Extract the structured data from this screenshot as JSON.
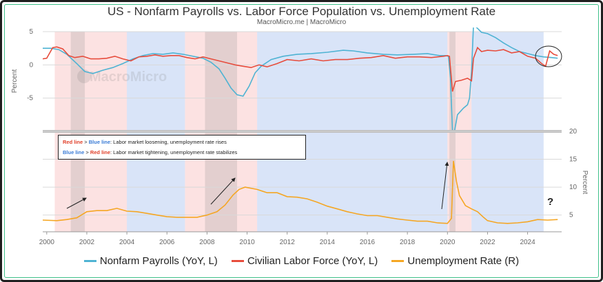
{
  "header": {
    "title": "US - Nonfarm Payrolls vs. Labor Force Population vs. Unemployment Rate",
    "subtitle": "MacroMicro.me | MacroMicro",
    "watermark": "MacroMicro"
  },
  "annotations": {
    "line1_red": "Red line",
    "line1_op": " > ",
    "line1_blue": "Blue line",
    "line1_text": ": Labor market loosening, unemployment rate rises",
    "line2_blue": "Blue line",
    "line2_op": " > ",
    "line2_red": "Red line",
    "line2_text": ": Labor market tightening, unemployment rate stabilizes",
    "question": "?"
  },
  "legend": {
    "payrolls": "Nonfarm Payrolls (YoY, L)",
    "laborforce": "Civilian Labor Force (YoY, L)",
    "unemployment": "Unemployment Rate (R)"
  },
  "colors": {
    "payrolls": "#4eb3d3",
    "laborforce": "#e74c3c",
    "unemployment": "#f5a623",
    "red_shade": "rgba(248,190,190,0.45)",
    "blue_shade": "rgba(170,195,240,0.45)",
    "grey_shade": "rgba(150,150,150,0.25)"
  },
  "chart_data": [
    {
      "type": "line",
      "title": "US - Nonfarm Payrolls vs. Labor Force Population vs. Unemployment Rate",
      "subtitle": "MacroMicro.me | MacroMicro",
      "ylabel": "Percent",
      "ylim": [
        -10,
        5
      ],
      "yticks": [
        5,
        0,
        -5
      ],
      "x_range": [
        1999.8,
        2025.7
      ],
      "grid": true,
      "series": [
        {
          "name": "Nonfarm Payrolls (YoY, L)",
          "points": [
            [
              1999.8,
              2.5
            ],
            [
              2000.2,
              2.5
            ],
            [
              2000.6,
              2.3
            ],
            [
              2001.0,
              1.6
            ],
            [
              2001.5,
              0.2
            ],
            [
              2001.9,
              -1.0
            ],
            [
              2002.3,
              -1.3
            ],
            [
              2002.8,
              -0.8
            ],
            [
              2003.3,
              -0.4
            ],
            [
              2003.8,
              0.2
            ],
            [
              2004.3,
              0.9
            ],
            [
              2004.8,
              1.4
            ],
            [
              2005.3,
              1.7
            ],
            [
              2005.8,
              1.6
            ],
            [
              2006.3,
              1.8
            ],
            [
              2006.8,
              1.6
            ],
            [
              2007.3,
              1.3
            ],
            [
              2007.8,
              1.0
            ],
            [
              2008.2,
              0.4
            ],
            [
              2008.6,
              -0.6
            ],
            [
              2008.9,
              -2.0
            ],
            [
              2009.2,
              -3.5
            ],
            [
              2009.5,
              -4.5
            ],
            [
              2009.8,
              -4.7
            ],
            [
              2010.1,
              -3.2
            ],
            [
              2010.4,
              -1.2
            ],
            [
              2010.7,
              -0.2
            ],
            [
              2011.2,
              0.8
            ],
            [
              2011.8,
              1.3
            ],
            [
              2012.5,
              1.6
            ],
            [
              2013.2,
              1.7
            ],
            [
              2014.0,
              1.9
            ],
            [
              2014.8,
              2.2
            ],
            [
              2015.3,
              2.1
            ],
            [
              2016.0,
              1.8
            ],
            [
              2016.8,
              1.6
            ],
            [
              2017.5,
              1.5
            ],
            [
              2018.3,
              1.6
            ],
            [
              2019.0,
              1.7
            ],
            [
              2019.6,
              1.4
            ],
            [
              2019.9,
              1.4
            ],
            [
              2020.05,
              1.3
            ],
            [
              2020.15,
              -2.0
            ],
            [
              2020.25,
              -13.0
            ],
            [
              2020.35,
              -10.0
            ],
            [
              2020.5,
              -7.5
            ],
            [
              2020.8,
              -6.5
            ],
            [
              2021.0,
              -6.0
            ],
            [
              2021.1,
              -5.0
            ],
            [
              2021.2,
              -1.0
            ],
            [
              2021.3,
              6.0
            ],
            [
              2021.5,
              5.5
            ],
            [
              2021.7,
              4.9
            ],
            [
              2022.0,
              4.7
            ],
            [
              2022.4,
              4.1
            ],
            [
              2022.8,
              3.3
            ],
            [
              2023.2,
              2.6
            ],
            [
              2023.6,
              2.0
            ],
            [
              2024.0,
              1.7
            ],
            [
              2024.4,
              1.4
            ],
            [
              2024.8,
              1.2
            ],
            [
              2025.2,
              1.1
            ],
            [
              2025.5,
              1.0
            ]
          ]
        },
        {
          "name": "Civilian Labor Force (YoY, L)",
          "points": [
            [
              1999.8,
              0.9
            ],
            [
              2000.0,
              1.0
            ],
            [
              2000.3,
              2.6
            ],
            [
              2000.5,
              2.7
            ],
            [
              2000.8,
              2.4
            ],
            [
              2001.1,
              1.4
            ],
            [
              2001.4,
              1.1
            ],
            [
              2001.8,
              1.3
            ],
            [
              2002.2,
              0.9
            ],
            [
              2002.6,
              0.9
            ],
            [
              2003.0,
              1.0
            ],
            [
              2003.4,
              1.3
            ],
            [
              2003.8,
              0.9
            ],
            [
              2004.2,
              0.6
            ],
            [
              2004.6,
              1.2
            ],
            [
              2005.0,
              1.3
            ],
            [
              2005.4,
              1.5
            ],
            [
              2005.8,
              1.3
            ],
            [
              2006.2,
              1.4
            ],
            [
              2006.6,
              1.4
            ],
            [
              2007.0,
              1.1
            ],
            [
              2007.4,
              0.9
            ],
            [
              2007.8,
              1.2
            ],
            [
              2008.2,
              0.9
            ],
            [
              2008.6,
              0.6
            ],
            [
              2009.0,
              0.3
            ],
            [
              2009.4,
              0.0
            ],
            [
              2009.8,
              -0.2
            ],
            [
              2010.2,
              -0.4
            ],
            [
              2010.6,
              0.0
            ],
            [
              2011.0,
              -0.3
            ],
            [
              2011.5,
              0.2
            ],
            [
              2012.0,
              0.8
            ],
            [
              2012.6,
              0.6
            ],
            [
              2013.2,
              0.9
            ],
            [
              2013.8,
              0.6
            ],
            [
              2014.4,
              0.8
            ],
            [
              2015.0,
              0.8
            ],
            [
              2015.6,
              1.0
            ],
            [
              2016.2,
              1.1
            ],
            [
              2016.8,
              1.4
            ],
            [
              2017.4,
              1.0
            ],
            [
              2018.0,
              1.2
            ],
            [
              2018.6,
              1.2
            ],
            [
              2019.2,
              1.1
            ],
            [
              2019.8,
              1.3
            ],
            [
              2020.0,
              1.4
            ],
            [
              2020.1,
              1.3
            ],
            [
              2020.25,
              -4.0
            ],
            [
              2020.4,
              -2.5
            ],
            [
              2020.7,
              -2.3
            ],
            [
              2021.0,
              -2.0
            ],
            [
              2021.2,
              -2.4
            ],
            [
              2021.3,
              1.0
            ],
            [
              2021.5,
              2.6
            ],
            [
              2021.7,
              2.0
            ],
            [
              2022.0,
              2.2
            ],
            [
              2022.4,
              2.1
            ],
            [
              2022.8,
              2.3
            ],
            [
              2023.2,
              1.8
            ],
            [
              2023.6,
              2.0
            ],
            [
              2024.0,
              1.3
            ],
            [
              2024.4,
              1.0
            ],
            [
              2024.7,
              0.2
            ],
            [
              2024.9,
              -0.2
            ],
            [
              2025.1,
              2.1
            ],
            [
              2025.3,
              1.6
            ],
            [
              2025.5,
              1.4
            ]
          ]
        }
      ]
    },
    {
      "type": "line",
      "ylabel": "Percent",
      "ylim": [
        2,
        20
      ],
      "yticks": [
        20,
        15,
        10,
        5
      ],
      "xticks": [
        "2000",
        "2002",
        "2004",
        "2006",
        "2008",
        "2010",
        "2012",
        "2014",
        "2016",
        "2018",
        "2020",
        "2022",
        "2024"
      ],
      "x_range": [
        1999.8,
        2025.7
      ],
      "grid": true,
      "series": [
        {
          "name": "Unemployment Rate (R)",
          "points": [
            [
              1999.8,
              4.1
            ],
            [
              2000.5,
              4.0
            ],
            [
              2001.0,
              4.2
            ],
            [
              2001.5,
              4.5
            ],
            [
              2002.0,
              5.6
            ],
            [
              2002.5,
              5.8
            ],
            [
              2003.0,
              5.8
            ],
            [
              2003.5,
              6.2
            ],
            [
              2004.0,
              5.7
            ],
            [
              2004.5,
              5.6
            ],
            [
              2005.0,
              5.3
            ],
            [
              2005.5,
              5.0
            ],
            [
              2006.0,
              4.7
            ],
            [
              2006.5,
              4.6
            ],
            [
              2007.0,
              4.6
            ],
            [
              2007.5,
              4.6
            ],
            [
              2008.0,
              5.0
            ],
            [
              2008.5,
              5.6
            ],
            [
              2008.9,
              6.8
            ],
            [
              2009.3,
              8.6
            ],
            [
              2009.6,
              9.6
            ],
            [
              2009.9,
              10.0
            ],
            [
              2010.5,
              9.6
            ],
            [
              2011.0,
              9.0
            ],
            [
              2011.5,
              9.0
            ],
            [
              2012.0,
              8.3
            ],
            [
              2012.5,
              8.2
            ],
            [
              2013.0,
              7.9
            ],
            [
              2013.5,
              7.3
            ],
            [
              2014.0,
              6.6
            ],
            [
              2014.5,
              6.1
            ],
            [
              2015.0,
              5.6
            ],
            [
              2015.5,
              5.2
            ],
            [
              2016.0,
              4.9
            ],
            [
              2016.5,
              4.9
            ],
            [
              2017.0,
              4.6
            ],
            [
              2017.5,
              4.3
            ],
            [
              2018.0,
              4.1
            ],
            [
              2018.5,
              3.9
            ],
            [
              2019.0,
              3.9
            ],
            [
              2019.5,
              3.6
            ],
            [
              2020.0,
              3.5
            ],
            [
              2020.2,
              4.4
            ],
            [
              2020.3,
              14.7
            ],
            [
              2020.45,
              11.0
            ],
            [
              2020.6,
              8.5
            ],
            [
              2020.9,
              6.7
            ],
            [
              2021.2,
              6.1
            ],
            [
              2021.5,
              5.6
            ],
            [
              2021.8,
              4.6
            ],
            [
              2022.0,
              4.0
            ],
            [
              2022.5,
              3.6
            ],
            [
              2023.0,
              3.5
            ],
            [
              2023.5,
              3.6
            ],
            [
              2024.0,
              3.8
            ],
            [
              2024.5,
              4.2
            ],
            [
              2025.0,
              4.1
            ],
            [
              2025.5,
              4.2
            ]
          ]
        }
      ],
      "annotations": [
        "Red line > Blue line: Labor market loosening, unemployment rate rises",
        "Blue line > Red line: Labor market tightening, unemployment rate stabilizes",
        "?"
      ]
    }
  ],
  "regions": [
    {
      "from": 2000.4,
      "to": 2004.0,
      "color": "red"
    },
    {
      "from": 2004.0,
      "to": 2006.9,
      "color": "blue"
    },
    {
      "from": 2006.9,
      "to": 2010.5,
      "color": "red"
    },
    {
      "from": 2010.5,
      "to": 2020.0,
      "color": "blue"
    },
    {
      "from": 2020.0,
      "to": 2021.2,
      "color": "red"
    },
    {
      "from": 2021.2,
      "to": 2024.8,
      "color": "blue"
    }
  ],
  "recessions": [
    {
      "from": 2001.2,
      "to": 2001.9
    },
    {
      "from": 2007.9,
      "to": 2009.5
    },
    {
      "from": 2020.1,
      "to": 2020.4
    }
  ]
}
